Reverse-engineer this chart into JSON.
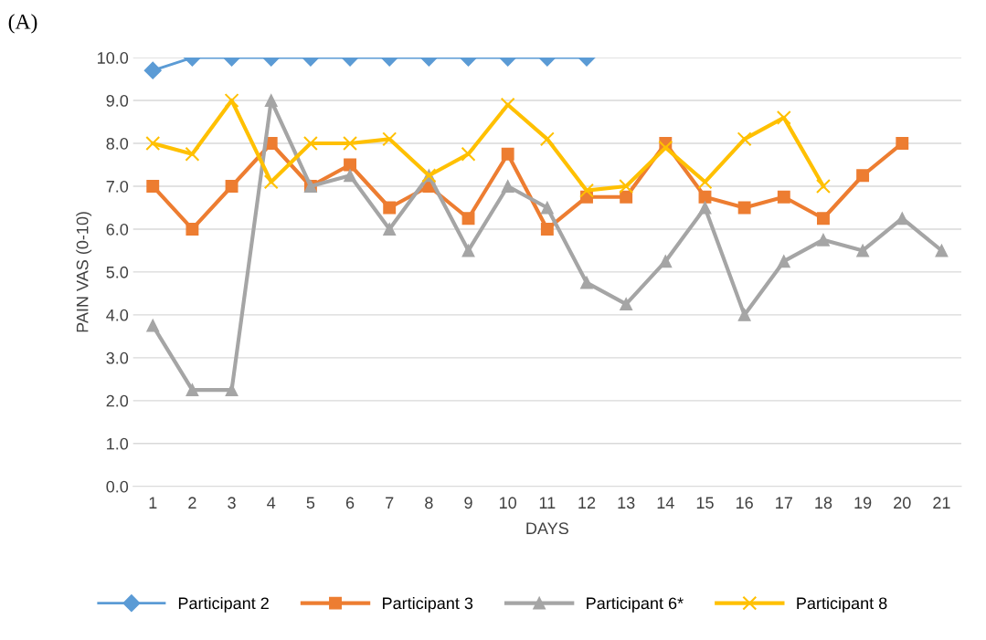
{
  "chart_data": {
    "type": "line",
    "title": "(A)",
    "xlabel": "DAYS",
    "ylabel": "PAIN VAS (0-10)",
    "categories": [
      "1",
      "2",
      "3",
      "4",
      "5",
      "6",
      "7",
      "8",
      "9",
      "10",
      "11",
      "12",
      "13",
      "14",
      "15",
      "16",
      "17",
      "18",
      "19",
      "20",
      "21"
    ],
    "series": [
      {
        "name": "Participant 2",
        "color": "#5b9bd5",
        "marker": "diamond",
        "values": [
          9.7,
          10,
          10,
          10,
          10,
          10,
          10,
          10,
          10,
          10,
          10,
          10,
          null,
          null,
          null,
          null,
          null,
          null,
          null,
          null,
          null
        ]
      },
      {
        "name": "Participant 3",
        "color": "#ed7d31",
        "marker": "square",
        "values": [
          7,
          6,
          7,
          8,
          7,
          7.5,
          6.5,
          7,
          6.25,
          7.75,
          6,
          6.75,
          6.75,
          8,
          6.75,
          6.5,
          6.75,
          6.25,
          7.25,
          8,
          null
        ]
      },
      {
        "name": "Participant 6*",
        "color": "#a5a5a5",
        "marker": "triangle",
        "values": [
          3.75,
          2.25,
          2.25,
          9,
          7,
          7.25,
          6,
          7.25,
          5.5,
          7,
          6.5,
          4.75,
          4.25,
          5.25,
          6.5,
          4,
          5.25,
          5.75,
          5.5,
          6.25,
          5.5
        ]
      },
      {
        "name": "Participant 8",
        "color": "#ffc000",
        "marker": "cross",
        "values": [
          8,
          7.75,
          9,
          7.1,
          8,
          8,
          8.1,
          7.25,
          7.75,
          8.9,
          8.1,
          6.9,
          7,
          7.9,
          7.1,
          8.1,
          8.6,
          7,
          null,
          null,
          null
        ]
      }
    ],
    "ylim": [
      0,
      10
    ],
    "yticks": [
      {
        "value": 0,
        "label": "0.0"
      },
      {
        "value": 1,
        "label": "1.0"
      },
      {
        "value": 2,
        "label": "2.0"
      },
      {
        "value": 3,
        "label": "3.0"
      },
      {
        "value": 4,
        "label": "4.0"
      },
      {
        "value": 5,
        "label": "5.0"
      },
      {
        "value": 6,
        "label": "6.0"
      },
      {
        "value": 7,
        "label": "7.0"
      },
      {
        "value": 8,
        "label": "8.0"
      },
      {
        "value": 9,
        "label": "9.0"
      },
      {
        "value": 10,
        "label": "10.0"
      }
    ],
    "grid": "y",
    "legend": "bottom",
    "line_style": "solid"
  }
}
